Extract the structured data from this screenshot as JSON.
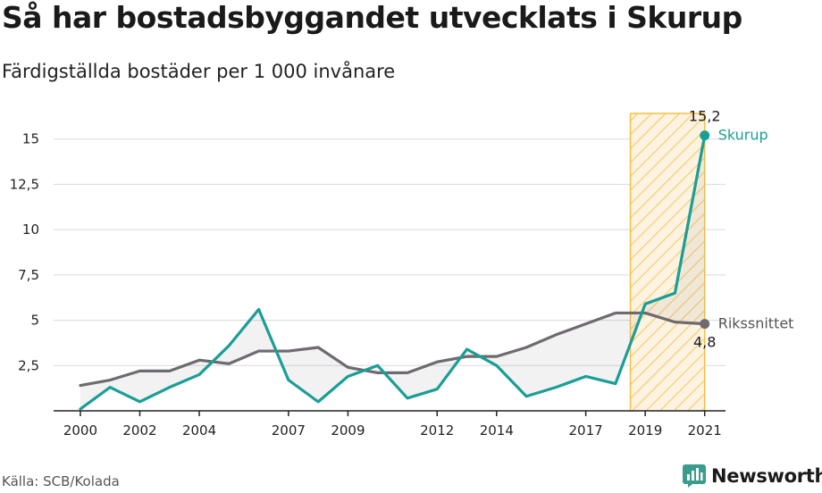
{
  "title": "Så har bostadsbyggandet utvecklats i Skurup",
  "subtitle": "Färdigställda bostäder per 1 000 invånare",
  "source": "Källa: SCB/Kolada",
  "brand": {
    "name": "Newsworthy",
    "logo_icon": "newsworthy-chart-icon",
    "color": "#3a9c8c"
  },
  "chart_data": {
    "type": "line",
    "x": [
      2000,
      2001,
      2002,
      2003,
      2004,
      2005,
      2006,
      2007,
      2008,
      2009,
      2010,
      2011,
      2012,
      2013,
      2014,
      2015,
      2016,
      2017,
      2018,
      2019,
      2020,
      2021
    ],
    "x_tick_values": [
      2000,
      2002,
      2004,
      2007,
      2009,
      2012,
      2014,
      2017,
      2019,
      2021
    ],
    "x_tick_labels": [
      "2000",
      "2002",
      "2004",
      "2007",
      "2009",
      "2012",
      "2014",
      "2017",
      "2019",
      "2021"
    ],
    "y_ticks": [
      2.5,
      5,
      7.5,
      10,
      12.5,
      15
    ],
    "y_tick_labels": [
      "2,5",
      "5",
      "7,5",
      "10",
      "12,5",
      "15"
    ],
    "xlim": [
      1999.1,
      2021.7
    ],
    "ylim": [
      0,
      17.5
    ],
    "grid": true,
    "highlight_range": [
      2018.5,
      2021
    ],
    "highlight_color": "#f5c040",
    "series": [
      {
        "name": "Skurup",
        "color": "#1a9e96",
        "values": [
          0.1,
          1.3,
          0.5,
          1.3,
          2.0,
          3.6,
          5.6,
          1.7,
          0.5,
          1.9,
          2.5,
          0.7,
          1.2,
          3.4,
          2.5,
          0.8,
          1.3,
          1.9,
          1.5,
          5.9,
          6.5,
          15.2
        ],
        "end_value_label": "15,2"
      },
      {
        "name": "Rikssnittet",
        "color": "#6e6a70",
        "values": [
          1.4,
          1.7,
          2.2,
          2.2,
          2.8,
          2.6,
          3.3,
          3.3,
          3.5,
          2.4,
          2.1,
          2.1,
          2.7,
          3.0,
          3.0,
          3.5,
          4.2,
          4.8,
          5.4,
          5.4,
          4.9,
          4.8
        ],
        "end_value_label": "4,8"
      }
    ]
  }
}
